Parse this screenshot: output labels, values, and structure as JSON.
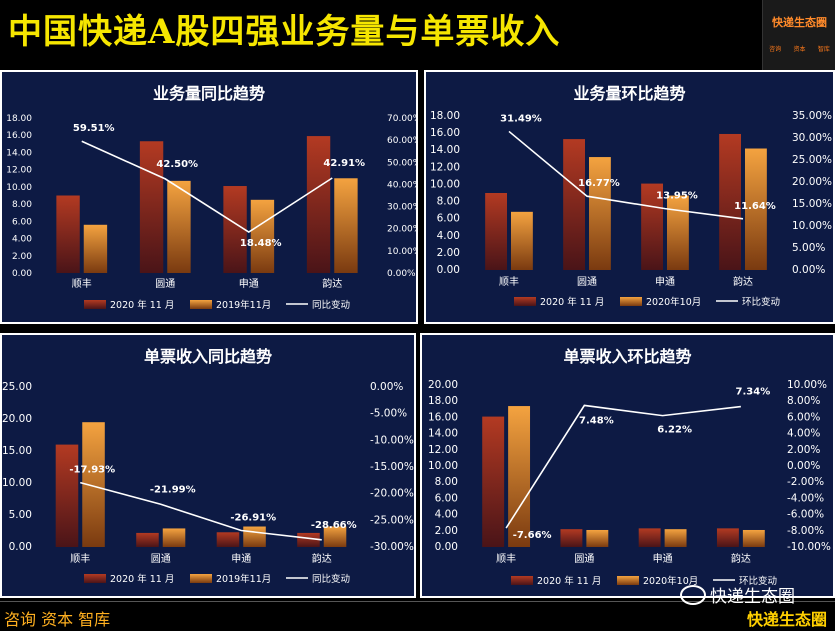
{
  "page": {
    "title": "中国快递A股四强业务量与单票收入",
    "logo_text": "快递生态圈",
    "logo_sub": [
      "咨询",
      "资本",
      "智库"
    ],
    "footer_left": "咨询 资本 智库",
    "footer_right": "快递生态圈",
    "watermark": "快递生态圈"
  },
  "colors": {
    "bar_a_top": "#b33a22",
    "bar_a_bottom": "#4a1418",
    "bar_b_top": "#f4a340",
    "bar_b_bottom": "#7a3a10",
    "line": "#ffffff",
    "panel_bg": "#0d1a44"
  },
  "chart_data": [
    {
      "id": "c1",
      "type": "bar",
      "title": "业务量同比趋势",
      "categories": [
        "顺丰",
        "圆通",
        "申通",
        "韵达"
      ],
      "series": [
        {
          "name": "2020 年 11 月",
          "kind": "bar",
          "values": [
            9.0,
            15.3,
            10.1,
            15.9
          ]
        },
        {
          "name": "2019年11月",
          "kind": "bar",
          "values": [
            5.6,
            10.7,
            8.5,
            11.0
          ]
        },
        {
          "name": "同比变动",
          "kind": "line",
          "values": [
            0.5951,
            0.425,
            0.1848,
            0.4291
          ],
          "labels": [
            "59.51%",
            "42.50%",
            "18.48%",
            "42.91%"
          ]
        }
      ],
      "y_left": {
        "min": 0,
        "max": 18,
        "step": 2,
        "ticks": [
          "0.00",
          "2.00",
          "4.00",
          "6.00",
          "8.00",
          "10.00",
          "12.00",
          "14.00",
          "16.00",
          "18.00"
        ]
      },
      "y_right": {
        "min": 0,
        "max": 0.7,
        "ticks": [
          "0.00%",
          "10.00%",
          "20.00%",
          "30.00%",
          "40.00%",
          "50.00%",
          "60.00%",
          "70.00%"
        ]
      },
      "legend": [
        "2020 年 11 月",
        "2019年11月",
        "同比变动"
      ]
    },
    {
      "id": "c2",
      "type": "bar",
      "title": "业务量环比趋势",
      "categories": [
        "顺丰",
        "圆通",
        "申通",
        "韵达"
      ],
      "series": [
        {
          "name": "2020 年 11 月",
          "kind": "bar",
          "values": [
            9.0,
            15.3,
            10.1,
            15.9
          ]
        },
        {
          "name": "2020年10月",
          "kind": "bar",
          "values": [
            6.8,
            13.2,
            8.7,
            14.2
          ]
        },
        {
          "name": "环比变动",
          "kind": "line",
          "values": [
            0.3149,
            0.1677,
            0.1395,
            0.1164
          ],
          "labels": [
            "31.49%",
            "16.77%",
            "13.95%",
            "11.64%"
          ]
        }
      ],
      "y_left": {
        "min": 0,
        "max": 18,
        "ticks": [
          "0.00",
          "2.00",
          "4.00",
          "6.00",
          "8.00",
          "10.00",
          "12.00",
          "14.00",
          "16.00",
          "18.00"
        ]
      },
      "y_right": {
        "min": 0,
        "max": 0.35,
        "ticks": [
          "0.00%",
          "5.00%",
          "10.00%",
          "15.00%",
          "20.00%",
          "25.00%",
          "30.00%",
          "35.00%"
        ]
      },
      "legend": [
        "2020 年 11 月",
        "2020年10月",
        "环比变动"
      ]
    },
    {
      "id": "c3",
      "type": "bar",
      "title": "单票收入同比趋势",
      "categories": [
        "顺丰",
        "圆通",
        "申通",
        "韵达"
      ],
      "series": [
        {
          "name": "2020 年 11 月",
          "kind": "bar",
          "values": [
            16.0,
            2.2,
            2.3,
            2.2
          ]
        },
        {
          "name": "2019年11月",
          "kind": "bar",
          "values": [
            19.5,
            2.9,
            3.2,
            3.2
          ]
        },
        {
          "name": "同比变动",
          "kind": "line",
          "values": [
            -0.1793,
            -0.2199,
            -0.2691,
            -0.2866
          ],
          "labels": [
            "-17.93%",
            "-21.99%",
            "-26.91%",
            "-28.66%"
          ]
        }
      ],
      "y_left": {
        "min": 0,
        "max": 25,
        "ticks": [
          "0.00",
          "5.00",
          "10.00",
          "15.00",
          "20.00",
          "25.00"
        ]
      },
      "y_right": {
        "min": -0.3,
        "max": 0,
        "ticks": [
          "-30.00%",
          "-25.00%",
          "-20.00%",
          "-15.00%",
          "-10.00%",
          "-5.00%",
          "0.00%"
        ]
      },
      "legend": [
        "2020 年 11 月",
        "2019年11月",
        "同比变动"
      ]
    },
    {
      "id": "c4",
      "type": "bar",
      "title": "单票收入环比趋势",
      "categories": [
        "顺丰",
        "圆通",
        "申通",
        "韵达"
      ],
      "series": [
        {
          "name": "2020 年 11 月",
          "kind": "bar",
          "values": [
            16.1,
            2.2,
            2.3,
            2.3
          ]
        },
        {
          "name": "2020年10月",
          "kind": "bar",
          "values": [
            17.4,
            2.1,
            2.2,
            2.1
          ]
        },
        {
          "name": "环比变动",
          "kind": "line",
          "values": [
            -0.0766,
            0.0748,
            0.0622,
            0.0734
          ],
          "labels": [
            "-7.66%",
            "7.48%",
            "6.22%",
            "7.34%"
          ]
        }
      ],
      "y_left": {
        "min": 0,
        "max": 20,
        "ticks": [
          "0.00",
          "2.00",
          "4.00",
          "6.00",
          "8.00",
          "10.00",
          "12.00",
          "14.00",
          "16.00",
          "18.00",
          "20.00"
        ]
      },
      "y_right": {
        "min": -0.1,
        "max": 0.1,
        "ticks": [
          "-10.00%",
          "-8.00%",
          "-6.00%",
          "-4.00%",
          "-2.00%",
          "0.00%",
          "2.00%",
          "4.00%",
          "6.00%",
          "8.00%",
          "10.00%"
        ]
      },
      "legend": [
        "2020 年 11 月",
        "2020年10月",
        "环比变动"
      ]
    }
  ]
}
